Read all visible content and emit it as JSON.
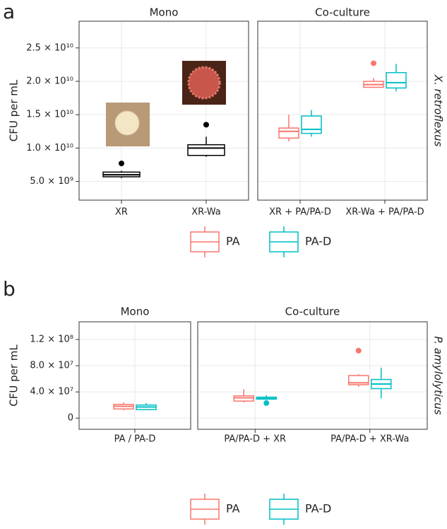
{
  "chart_data": [
    {
      "type": "boxplot",
      "panel_label": "a",
      "ylabel": "CFU per mL",
      "row_label": "X. retroflexus",
      "ylim": [
        2200000000,
        29000000000
      ],
      "yticks": [
        {
          "value": 5000000000,
          "label": "5.0 × 10⁹"
        },
        {
          "value": 10000000000,
          "label": "1.0 × 10¹⁰"
        },
        {
          "value": 15000000000,
          "label": "1.5 × 10¹⁰"
        },
        {
          "value": 20000000000,
          "label": "2.0 × 10¹⁰"
        },
        {
          "value": 25000000000,
          "label": "2.5 × 10¹⁰"
        }
      ],
      "grid": true,
      "series": [
        {
          "name": "PA",
          "color": "#f8766d"
        },
        {
          "name": "PA-D",
          "color": "#00bfc4"
        }
      ],
      "facets": [
        {
          "title": "Mono",
          "categories": [
            "XR",
            "XR-Wa"
          ],
          "boxes": [
            [
              {
                "color": "#000000",
                "min": 5500000000,
                "q1": 5700000000,
                "median": 6000000000,
                "q3": 6400000000,
                "max": 6600000000,
                "outliers": [
                  7700000000
                ]
              }
            ],
            [
              {
                "color": "#000000",
                "min": 8700000000,
                "q1": 8900000000,
                "median": 10000000000,
                "q3": 10500000000,
                "max": 11700000000,
                "outliers": [
                  13500000000
                ]
              }
            ]
          ]
        },
        {
          "title": "Co-culture",
          "categories": [
            "XR + PA/PA-D",
            "XR-Wa + PA/PA-D"
          ],
          "boxes": [
            [
              {
                "min": 11000000000,
                "q1": 11500000000,
                "median": 12500000000,
                "q3": 13000000000,
                "max": 15000000000,
                "outliers": []
              },
              {
                "min": 11700000000,
                "q1": 12200000000,
                "median": 12800000000,
                "q3": 14800000000,
                "max": 15700000000,
                "outliers": []
              }
            ],
            [
              {
                "min": 19000000000,
                "q1": 19100000000,
                "median": 19500000000,
                "q3": 20000000000,
                "max": 20500000000,
                "outliers": [
                  22700000000
                ]
              },
              {
                "min": 18500000000,
                "q1": 19000000000,
                "median": 19800000000,
                "q3": 21300000000,
                "max": 22600000000,
                "outliers": []
              }
            ]
          ]
        }
      ]
    },
    {
      "type": "boxplot",
      "panel_label": "b",
      "ylabel": "CFU per mL",
      "row_label": "P. amylolyticus",
      "ylim": [
        -17000000,
        147000000
      ],
      "yticks": [
        0,
        {
          "value": 40000000,
          "label": "4.0 × 10⁷"
        },
        {
          "value": 80000000,
          "label": "8.0 × 10⁷"
        },
        {
          "value": 120000000,
          "label": "1.2 × 10⁸"
        }
      ],
      "grid": true,
      "series": [
        {
          "name": "PA",
          "color": "#f8766d"
        },
        {
          "name": "PA-D",
          "color": "#00bfc4"
        }
      ],
      "facets": [
        {
          "title": "Mono",
          "categories": [
            "PA / PA-D"
          ],
          "boxes": [
            [
              {
                "min": 12000000,
                "q1": 14000000,
                "median": 18000000,
                "q3": 21000000,
                "max": 24000000,
                "outliers": []
              },
              {
                "min": 12000000,
                "q1": 13000000,
                "median": 17000000,
                "q3": 20000000,
                "max": 23000000,
                "outliers": []
              }
            ]
          ]
        },
        {
          "title": "Co-culture",
          "categories": [
            "PA/PA-D + XR",
            "PA/PA-D + XR-Wa"
          ],
          "boxes": [
            [
              {
                "min": 24000000,
                "q1": 26000000,
                "median": 31000000,
                "q3": 34000000,
                "max": 44000000,
                "outliers": []
              },
              {
                "min": 28000000,
                "q1": 29000000,
                "median": 30000000,
                "q3": 32000000,
                "max": 35000000,
                "outliers": [
                  23000000
                ]
              }
            ],
            [
              {
                "min": 48000000,
                "q1": 51000000,
                "median": 54000000,
                "q3": 65000000,
                "max": 67000000,
                "outliers": [
                  103000000
                ]
              },
              {
                "min": 30000000,
                "q1": 45000000,
                "median": 52000000,
                "q3": 59000000,
                "max": 77000000,
                "outliers": []
              }
            ]
          ]
        }
      ]
    }
  ]
}
